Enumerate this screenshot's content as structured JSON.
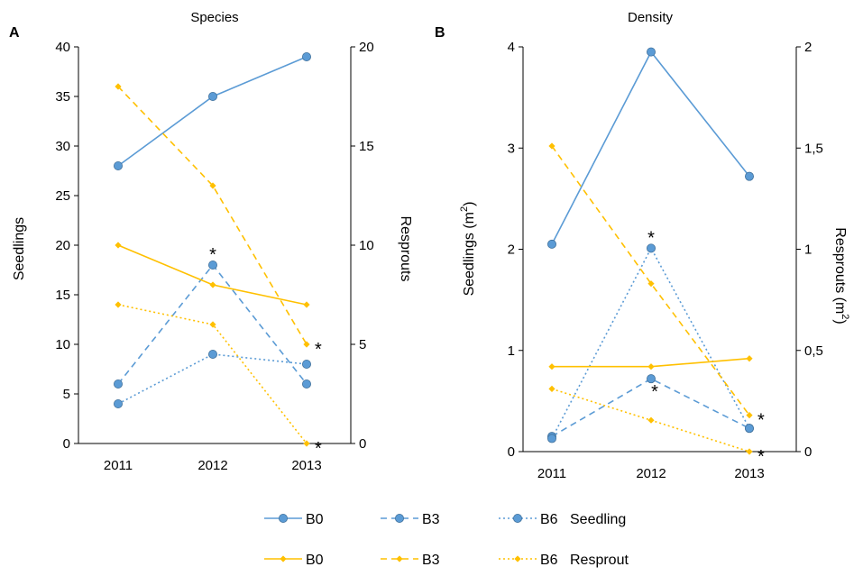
{
  "colors": {
    "seedling": "#5b9bd5",
    "seedling_stroke": "#41719c",
    "resprout": "#ffc000",
    "axis": "#000000"
  },
  "legend": {
    "row1": {
      "items": [
        "B0",
        "B3",
        "B6"
      ],
      "label": "Seedling"
    },
    "row2": {
      "items": [
        "B0",
        "B3",
        "B6"
      ],
      "label": "Resprout"
    }
  },
  "chart_data": [
    {
      "panel": "A",
      "type": "line",
      "title": "Species",
      "x": [
        "2011",
        "2012",
        "2013"
      ],
      "ylabel_left": "Seedlings",
      "ylabel_right": "Resprouts",
      "left_axis": {
        "min": 0,
        "max": 40,
        "step": 5,
        "tick_labels": [
          "0",
          "5",
          "10",
          "15",
          "20",
          "25",
          "30",
          "35",
          "40"
        ]
      },
      "right_axis": {
        "min": 0,
        "max": 20,
        "step": 5,
        "tick_labels": [
          "0",
          "5",
          "10",
          "15",
          "20"
        ]
      },
      "series": [
        {
          "name": "B0",
          "group": "Seedling",
          "axis": "left",
          "dash": "solid",
          "values": [
            28,
            35,
            39
          ]
        },
        {
          "name": "B3",
          "group": "Seedling",
          "axis": "left",
          "dash": "dash",
          "values": [
            6,
            18,
            6
          ]
        },
        {
          "name": "B6",
          "group": "Seedling",
          "axis": "left",
          "dash": "dot",
          "values": [
            4,
            9,
            8
          ]
        },
        {
          "name": "B0",
          "group": "Resprout",
          "axis": "right",
          "dash": "solid",
          "values": [
            10,
            8,
            7
          ]
        },
        {
          "name": "B3",
          "group": "Resprout",
          "axis": "right",
          "dash": "dash",
          "values": [
            18,
            13,
            5
          ]
        },
        {
          "name": "B6",
          "group": "Resprout",
          "axis": "right",
          "dash": "dot",
          "values": [
            7,
            6,
            0
          ]
        }
      ],
      "annotations": [
        {
          "text": "*",
          "x_index": 1,
          "value": 18,
          "axis": "left",
          "position": "above"
        },
        {
          "text": "*",
          "x_index": 2,
          "value": 5,
          "axis": "right",
          "position": "right"
        },
        {
          "text": "*",
          "x_index": 2,
          "value": 0,
          "axis": "right",
          "position": "right"
        }
      ]
    },
    {
      "panel": "B",
      "type": "line",
      "title": "Density",
      "x": [
        "2011",
        "2012",
        "2013"
      ],
      "ylabel_left": "Seedlings  (m",
      "ylabel_right": "Resprouts  (m",
      "superscript": "2",
      "ylabel_suffix": ")",
      "left_axis": {
        "min": 0,
        "max": 4,
        "step": 1,
        "tick_labels": [
          "0",
          "1",
          "2",
          "3",
          "4"
        ]
      },
      "right_axis": {
        "min": 0,
        "max": 2,
        "step": 0.5,
        "tick_labels": [
          "0",
          "0,5",
          "1",
          "1,5",
          "2"
        ]
      },
      "series": [
        {
          "name": "B0",
          "group": "Seedling",
          "axis": "left",
          "dash": "solid",
          "values": [
            2.05,
            3.95,
            2.72
          ]
        },
        {
          "name": "B3",
          "group": "Seedling",
          "axis": "left",
          "dash": "dash",
          "values": [
            0.15,
            0.72,
            0.23
          ]
        },
        {
          "name": "B6",
          "group": "Seedling",
          "axis": "left",
          "dash": "dot",
          "values": [
            0.13,
            2.01,
            0.23
          ]
        },
        {
          "name": "B0",
          "group": "Resprout",
          "axis": "right",
          "dash": "solid",
          "values": [
            0.42,
            0.42,
            0.46
          ]
        },
        {
          "name": "B3",
          "group": "Resprout",
          "axis": "right",
          "dash": "dash",
          "values": [
            1.51,
            0.83,
            0.18
          ]
        },
        {
          "name": "B6",
          "group": "Resprout",
          "axis": "right",
          "dash": "dot",
          "values": [
            0.31,
            0.155,
            0
          ]
        }
      ],
      "annotations": [
        {
          "text": "*",
          "x_index": 1,
          "value": 2.01,
          "axis": "left",
          "position": "above"
        },
        {
          "text": "*",
          "x_index": 1,
          "value": 0.72,
          "axis": "left",
          "position": "below"
        },
        {
          "text": "*",
          "x_index": 2,
          "value": 0.18,
          "axis": "right",
          "position": "right"
        },
        {
          "text": "*",
          "x_index": 2,
          "value": 0,
          "axis": "right",
          "position": "right"
        }
      ]
    }
  ]
}
